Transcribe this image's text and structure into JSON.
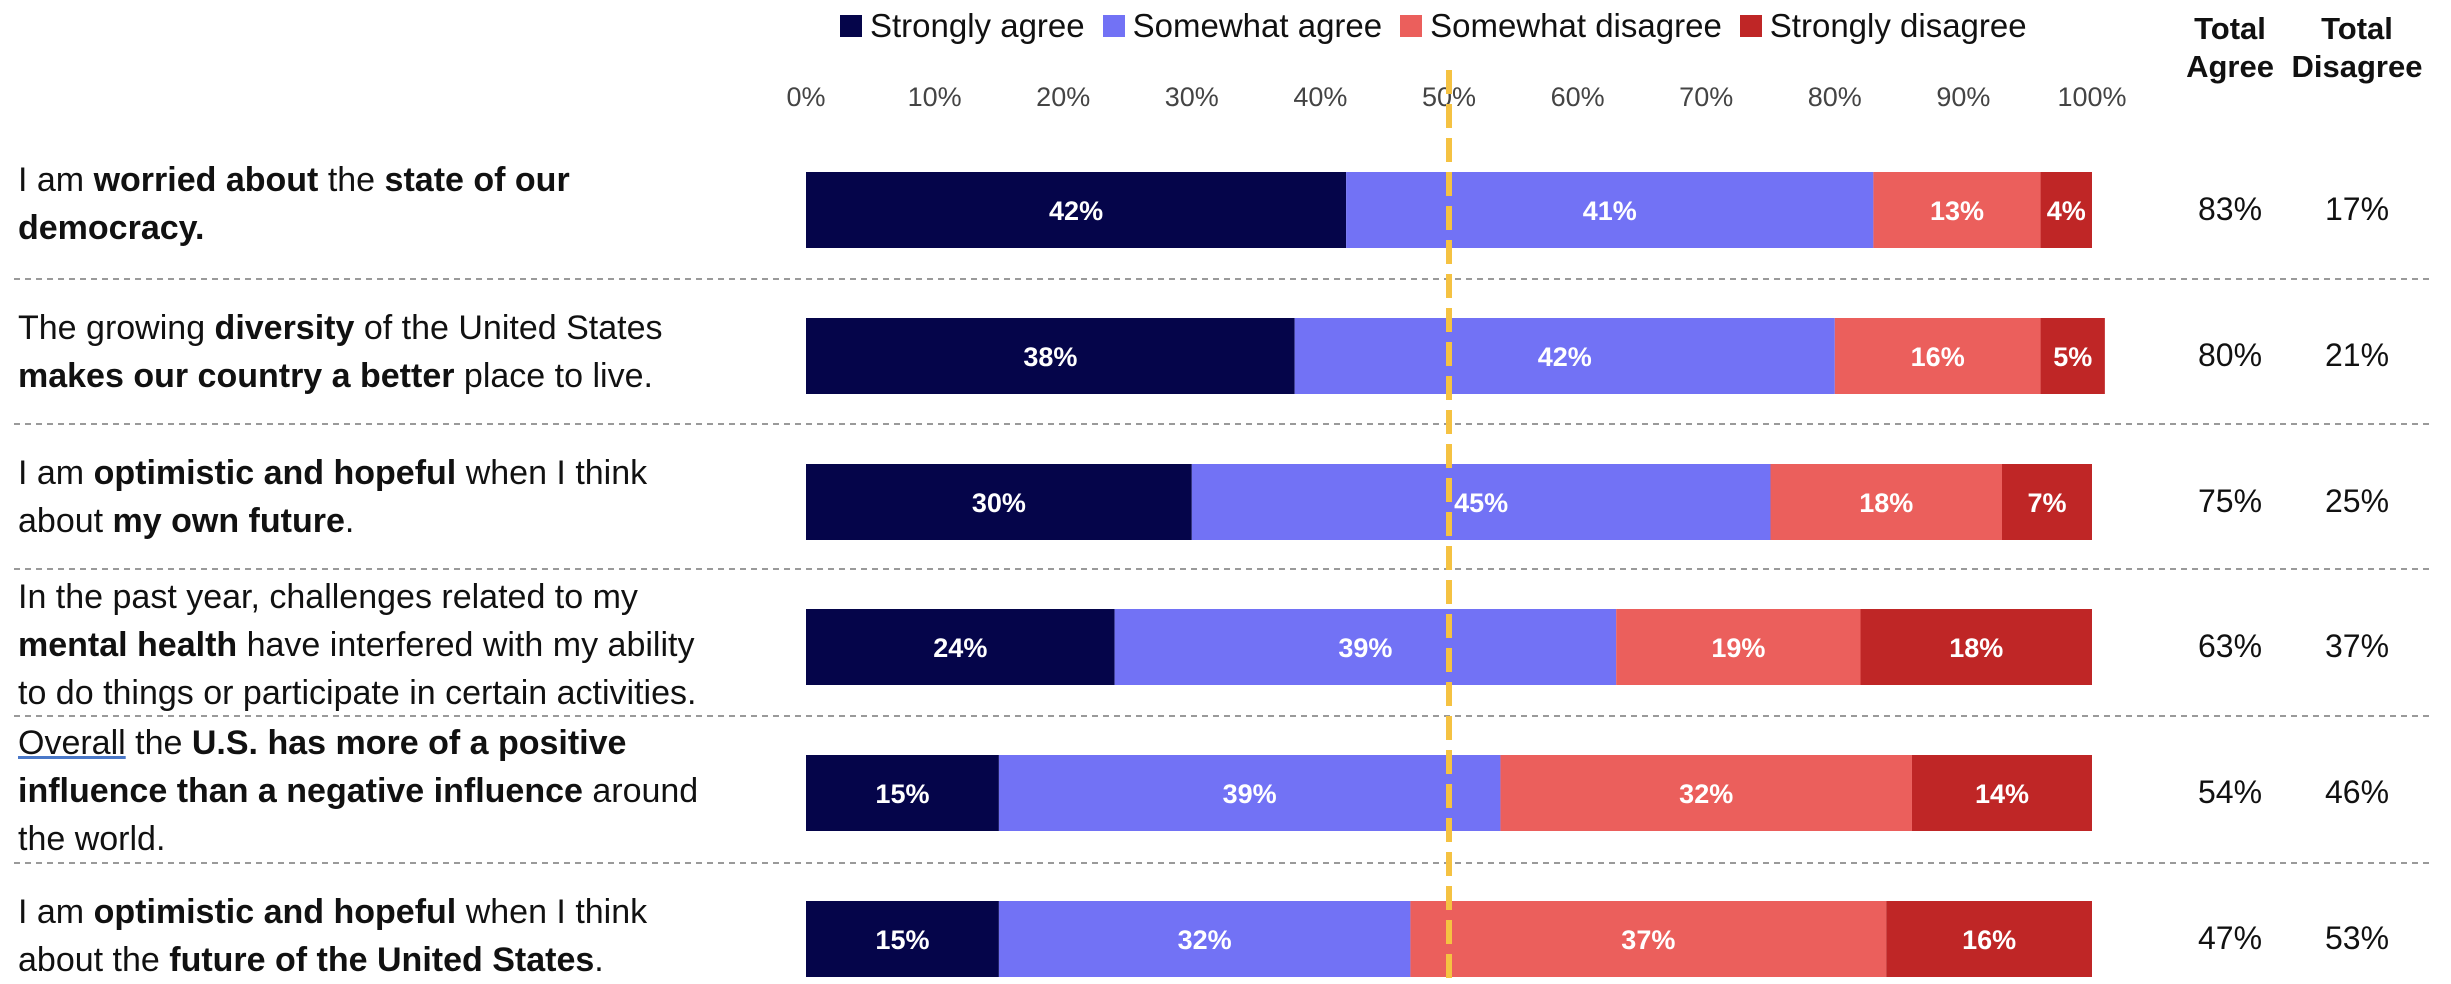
{
  "legend": [
    {
      "label": "Strongly agree",
      "color": "#05054a"
    },
    {
      "label": "Somewhat agree",
      "color": "#7272f5"
    },
    {
      "label": "Somewhat disagree",
      "color": "#eb5f5c"
    },
    {
      "label": "Strongly disagree",
      "color": "#bf2626"
    }
  ],
  "headers": {
    "total_agree": [
      "Total",
      "Agree"
    ],
    "total_disagree": [
      "Total",
      "Disagree"
    ]
  },
  "chart_data": {
    "type": "bar",
    "orientation": "horizontal",
    "stacked": true,
    "xlim": [
      0,
      100
    ],
    "x_ticks": [
      "0%",
      "10%",
      "20%",
      "30%",
      "40%",
      "50%",
      "60%",
      "70%",
      "80%",
      "90%",
      "100%"
    ],
    "reference_line": {
      "x": 50,
      "style": "dashed",
      "color": "#f5c242"
    },
    "series_colors": [
      "#05054a",
      "#7272f5",
      "#eb5f5c",
      "#bf2626"
    ],
    "series": [
      {
        "name": "Strongly agree",
        "values": [
          42,
          38,
          30,
          24,
          15,
          15
        ]
      },
      {
        "name": "Somewhat agree",
        "values": [
          41,
          42,
          45,
          39,
          39,
          32
        ]
      },
      {
        "name": "Somewhat disagree",
        "values": [
          13,
          16,
          18,
          19,
          32,
          37
        ]
      },
      {
        "name": "Strongly disagree",
        "values": [
          4,
          5,
          7,
          18,
          14,
          16
        ]
      }
    ],
    "categories": [
      [
        [
          {
            "t": "I am ",
            "b": false
          },
          {
            "t": "worried about",
            "b": true
          },
          {
            "t": " the ",
            "b": false
          },
          {
            "t": "state of our",
            "b": true
          }
        ],
        [
          {
            "t": "democracy.",
            "b": true
          }
        ]
      ],
      [
        [
          {
            "t": "The growing ",
            "b": false
          },
          {
            "t": "diversity",
            "b": true
          },
          {
            "t": " of the United States",
            "b": false
          }
        ],
        [
          {
            "t": "makes our country a better",
            "b": true
          },
          {
            "t": " place to live.",
            "b": false
          }
        ]
      ],
      [
        [
          {
            "t": "I am ",
            "b": false
          },
          {
            "t": "optimistic and hopeful",
            "b": true
          },
          {
            "t": " when I think",
            "b": false
          }
        ],
        [
          {
            "t": "about ",
            "b": false
          },
          {
            "t": "my own future",
            "b": true
          },
          {
            "t": ".",
            "b": false
          }
        ]
      ],
      [
        [
          {
            "t": "In the past year, challenges related to my",
            "b": false
          }
        ],
        [
          {
            "t": "mental health",
            "b": true
          },
          {
            "t": " have interfered with my ability",
            "b": false
          }
        ],
        [
          {
            "t": "to do things or participate in certain activities.",
            "b": false
          }
        ]
      ],
      [
        [
          {
            "t": "Overall",
            "b": false,
            "u": true
          },
          {
            "t": " the ",
            "b": false
          },
          {
            "t": "U.S. has more of a positive",
            "b": true
          }
        ],
        [
          {
            "t": "influence than a negative influence",
            "b": true
          },
          {
            "t": " around",
            "b": false
          }
        ],
        [
          {
            "t": "the world.",
            "b": false
          }
        ]
      ],
      [
        [
          {
            "t": "I am ",
            "b": false
          },
          {
            "t": "optimistic and hopeful",
            "b": true
          },
          {
            "t": " when I think",
            "b": false
          }
        ],
        [
          {
            "t": "about the ",
            "b": false
          },
          {
            "t": "future of the United States",
            "b": true
          },
          {
            "t": ".",
            "b": false
          }
        ]
      ]
    ],
    "total_agree": [
      "83%",
      "80%",
      "75%",
      "63%",
      "54%",
      "47%"
    ],
    "total_disagree": [
      "17%",
      "21%",
      "25%",
      "37%",
      "46%",
      "53%"
    ]
  }
}
